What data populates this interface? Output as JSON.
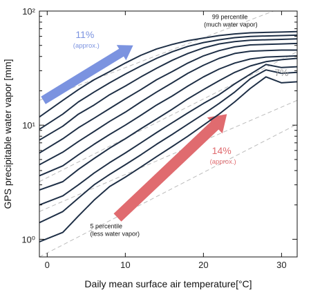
{
  "chart_data": {
    "type": "line",
    "xlabel": "Daily mean surface air temperature[°C]",
    "ylabel": "GPS precipitable water vapor [mm]",
    "xlim": [
      -1,
      32
    ],
    "ylim": [
      0.7,
      100
    ],
    "y_scale": "log",
    "x_ticks": [
      0,
      10,
      20,
      30
    ],
    "x_tick_labels": [
      "0",
      "10",
      "20",
      "30"
    ],
    "y_ticks": [
      1,
      10,
      100
    ],
    "y_tick_labels": [
      "10⁰",
      "10¹",
      "10²"
    ],
    "grid": false,
    "colors": {
      "series": "#1e2f46",
      "reference": "#bbbbbb",
      "blue_arrow": "#7b93e0",
      "red_arrow": "#e06b6f",
      "ref_label": "#999999"
    },
    "x": [
      -1,
      2,
      4,
      6,
      8,
      10,
      12,
      14,
      16,
      18,
      20,
      22,
      24,
      26,
      28,
      30,
      32
    ],
    "series": [
      {
        "values": [
          11.8,
          16.5,
          20.5,
          25.0,
          29.5,
          35.0,
          41.0,
          46.5,
          51.0,
          55.0,
          58.0,
          61.0,
          63.0,
          64.5,
          65.0,
          65.5,
          66.0
        ]
      },
      {
        "values": [
          9.2,
          12.5,
          16.0,
          19.5,
          23.5,
          28.0,
          33.0,
          38.5,
          44.0,
          49.0,
          53.0,
          56.0,
          58.5,
          60.0,
          60.5,
          61.0,
          61.5
        ]
      },
      {
        "values": [
          7.4,
          9.8,
          12.5,
          15.0,
          18.5,
          22.0,
          26.5,
          31.5,
          37.0,
          42.5,
          47.5,
          51.5,
          54.0,
          55.5,
          56.0,
          56.5,
          57.0
        ]
      },
      {
        "values": [
          5.7,
          7.6,
          9.5,
          11.5,
          14.0,
          17.0,
          20.5,
          25.0,
          29.5,
          35.0,
          40.5,
          45.0,
          48.5,
          50.5,
          51.0,
          51.5,
          52.0
        ]
      },
      {
        "values": [
          4.5,
          5.8,
          7.2,
          8.8,
          10.8,
          13.0,
          16.0,
          19.5,
          23.5,
          28.5,
          33.5,
          38.5,
          42.5,
          44.5,
          45.0,
          45.5,
          45.5
        ]
      },
      {
        "values": [
          3.6,
          4.4,
          5.5,
          6.8,
          8.3,
          10.0,
          12.2,
          15.0,
          18.0,
          22.0,
          26.5,
          31.0,
          35.0,
          38.0,
          39.5,
          40.0,
          40.5
        ]
      },
      {
        "values": [
          2.7,
          3.2,
          4.1,
          5.1,
          6.3,
          7.6,
          9.3,
          11.3,
          13.8,
          17.0,
          20.5,
          24.5,
          29.0,
          33.0,
          36.0,
          37.5,
          38.5
        ]
      },
      {
        "values": [
          2.0,
          2.4,
          3.0,
          3.8,
          4.7,
          5.7,
          7.0,
          8.6,
          10.5,
          12.8,
          15.5,
          18.5,
          23.0,
          28.0,
          34.0,
          32.0,
          32.5
        ]
      },
      {
        "values": [
          1.4,
          1.75,
          2.3,
          3.0,
          3.7,
          4.5,
          5.5,
          6.8,
          8.3,
          10.2,
          12.5,
          15.5,
          19.5,
          25.5,
          30.5,
          28.5,
          29.0
        ]
      },
      {
        "values": [
          0.95,
          1.15,
          1.6,
          2.2,
          2.9,
          3.5,
          4.3,
          5.3,
          6.5,
          8.0,
          10.0,
          12.5,
          16.0,
          21.0,
          26.5,
          23.5,
          24.0
        ]
      }
    ],
    "reference_lines": [
      {
        "x": [
          -1,
          32
        ],
        "values": [
          16.5,
          120.0
        ]
      },
      {
        "x": [
          -1,
          32
        ],
        "values": [
          3.2,
          44.0
        ]
      },
      {
        "x": [
          -1,
          32
        ],
        "values": [
          1.75,
          16.5
        ]
      },
      {
        "x": [
          -1,
          32
        ],
        "values": [
          0.7,
          10.2
        ]
      }
    ],
    "annotations": [
      {
        "id": "upper",
        "x": 23.5,
        "y": 85,
        "text": [
          "99 percentile",
          "(much water vapor)"
        ]
      },
      {
        "id": "lower",
        "x": 5.5,
        "y": 1.25,
        "text": [
          "5 percentile",
          "(less water vapor)"
        ]
      },
      {
        "id": "seven",
        "x": 30,
        "y": 27,
        "text": [
          "7%"
        ]
      },
      {
        "id": "eleven",
        "x": 5,
        "y": 58,
        "text": [
          "11%",
          "(approx.)"
        ]
      },
      {
        "id": "fourteen",
        "x": 22.5,
        "y": 5.6,
        "text": [
          "14%",
          "(approx.)"
        ]
      }
    ],
    "arrows": [
      {
        "id": "blue",
        "x": [
          -0.5,
          11
        ],
        "y": [
          16.5,
          50
        ],
        "color_key": "blue_arrow"
      },
      {
        "id": "red",
        "x": [
          9,
          23
        ],
        "y": [
          1.55,
          12.5
        ],
        "color_key": "red_arrow"
      }
    ]
  }
}
